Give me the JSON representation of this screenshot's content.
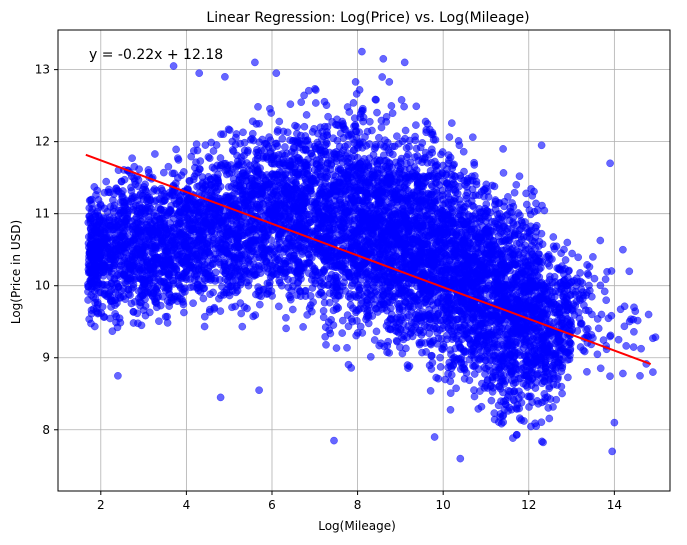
{
  "chart_data": {
    "type": "scatter",
    "title": "Linear Regression: Log(Price) vs. Log(Mileage)",
    "xlabel": "Log(Mileage)",
    "ylabel": "Log(Price in USD)",
    "xlim": [
      1.0,
      15.3
    ],
    "ylim": [
      7.15,
      13.55
    ],
    "xticks": [
      2,
      4,
      6,
      8,
      10,
      12,
      14
    ],
    "yticks": [
      8,
      9,
      10,
      11,
      12,
      13
    ],
    "grid": true,
    "annotation": "y = -0.22x + 12.18",
    "regression": {
      "slope": -0.22,
      "intercept": 12.18,
      "x_range": [
        1.65,
        14.85
      ]
    },
    "colors": {
      "points": "#0000ff",
      "line": "#ff0000",
      "grid": "#b0b0b0"
    },
    "point_alpha": 0.6,
    "scatter_density_bands": [
      {
        "x": 1.7,
        "y_low": 9.3,
        "y_high": 11.5,
        "density": 200
      },
      {
        "x": 2.0,
        "y_low": 9.3,
        "y_high": 11.6,
        "density": 220
      },
      {
        "x": 2.5,
        "y_low": 9.2,
        "y_high": 11.9,
        "density": 240
      },
      {
        "x": 3.0,
        "y_low": 9.1,
        "y_high": 11.9,
        "density": 240
      },
      {
        "x": 3.5,
        "y_low": 9.1,
        "y_high": 12.0,
        "density": 240
      },
      {
        "x": 4.0,
        "y_low": 9.3,
        "y_high": 12.1,
        "density": 240
      },
      {
        "x": 4.5,
        "y_low": 9.3,
        "y_high": 12.3,
        "density": 240
      },
      {
        "x": 5.0,
        "y_low": 9.3,
        "y_high": 12.4,
        "density": 260
      },
      {
        "x": 5.5,
        "y_low": 9.3,
        "y_high": 12.6,
        "density": 260
      },
      {
        "x": 6.0,
        "y_low": 9.3,
        "y_high": 12.7,
        "density": 280
      },
      {
        "x": 6.5,
        "y_low": 9.2,
        "y_high": 12.8,
        "density": 300
      },
      {
        "x": 7.0,
        "y_low": 9.1,
        "y_high": 12.9,
        "density": 320
      },
      {
        "x": 7.5,
        "y_low": 8.9,
        "y_high": 12.9,
        "density": 340
      },
      {
        "x": 8.0,
        "y_low": 8.8,
        "y_high": 13.0,
        "density": 380
      },
      {
        "x": 8.5,
        "y_low": 8.7,
        "y_high": 12.9,
        "density": 400
      },
      {
        "x": 9.0,
        "y_low": 8.6,
        "y_high": 12.7,
        "density": 400
      },
      {
        "x": 9.5,
        "y_low": 8.5,
        "y_high": 12.6,
        "density": 400
      },
      {
        "x": 10.0,
        "y_low": 8.3,
        "y_high": 12.5,
        "density": 400
      },
      {
        "x": 10.5,
        "y_low": 8.1,
        "y_high": 12.3,
        "density": 400
      },
      {
        "x": 11.0,
        "y_low": 7.9,
        "y_high": 12.0,
        "density": 400
      },
      {
        "x": 11.5,
        "y_low": 7.6,
        "y_high": 11.8,
        "density": 380
      },
      {
        "x": 12.0,
        "y_low": 7.5,
        "y_high": 11.8,
        "density": 340
      },
      {
        "x": 12.5,
        "y_low": 7.8,
        "y_high": 11.2,
        "density": 200
      },
      {
        "x": 13.0,
        "y_low": 8.6,
        "y_high": 10.6,
        "density": 60
      },
      {
        "x": 13.5,
        "y_low": 8.5,
        "y_high": 10.8,
        "density": 20
      },
      {
        "x": 14.0,
        "y_low": 8.3,
        "y_high": 10.6,
        "density": 12
      },
      {
        "x": 14.5,
        "y_low": 8.7,
        "y_high": 10.0,
        "density": 5
      }
    ],
    "scatter_outliers": [
      [
        2.4,
        8.75
      ],
      [
        4.8,
        8.45
      ],
      [
        7.45,
        7.85
      ],
      [
        5.7,
        8.55
      ],
      [
        3.7,
        13.05
      ],
      [
        4.3,
        12.95
      ],
      [
        4.9,
        12.9
      ],
      [
        5.6,
        13.1
      ],
      [
        6.1,
        12.95
      ],
      [
        8.1,
        13.25
      ],
      [
        8.6,
        13.15
      ],
      [
        9.1,
        13.1
      ],
      [
        13.9,
        11.7
      ],
      [
        14.2,
        10.5
      ],
      [
        14.35,
        10.2
      ],
      [
        14.6,
        8.75
      ],
      [
        14.8,
        9.6
      ],
      [
        14.9,
        8.8
      ],
      [
        13.95,
        7.7
      ],
      [
        14.0,
        8.1
      ],
      [
        12.9,
        10.6
      ],
      [
        13.2,
        9.8
      ],
      [
        13.7,
        9.6
      ],
      [
        14.1,
        9.25
      ],
      [
        10.4,
        7.6
      ],
      [
        9.8,
        7.9
      ],
      [
        12.3,
        11.95
      ],
      [
        11.4,
        11.9
      ]
    ]
  }
}
